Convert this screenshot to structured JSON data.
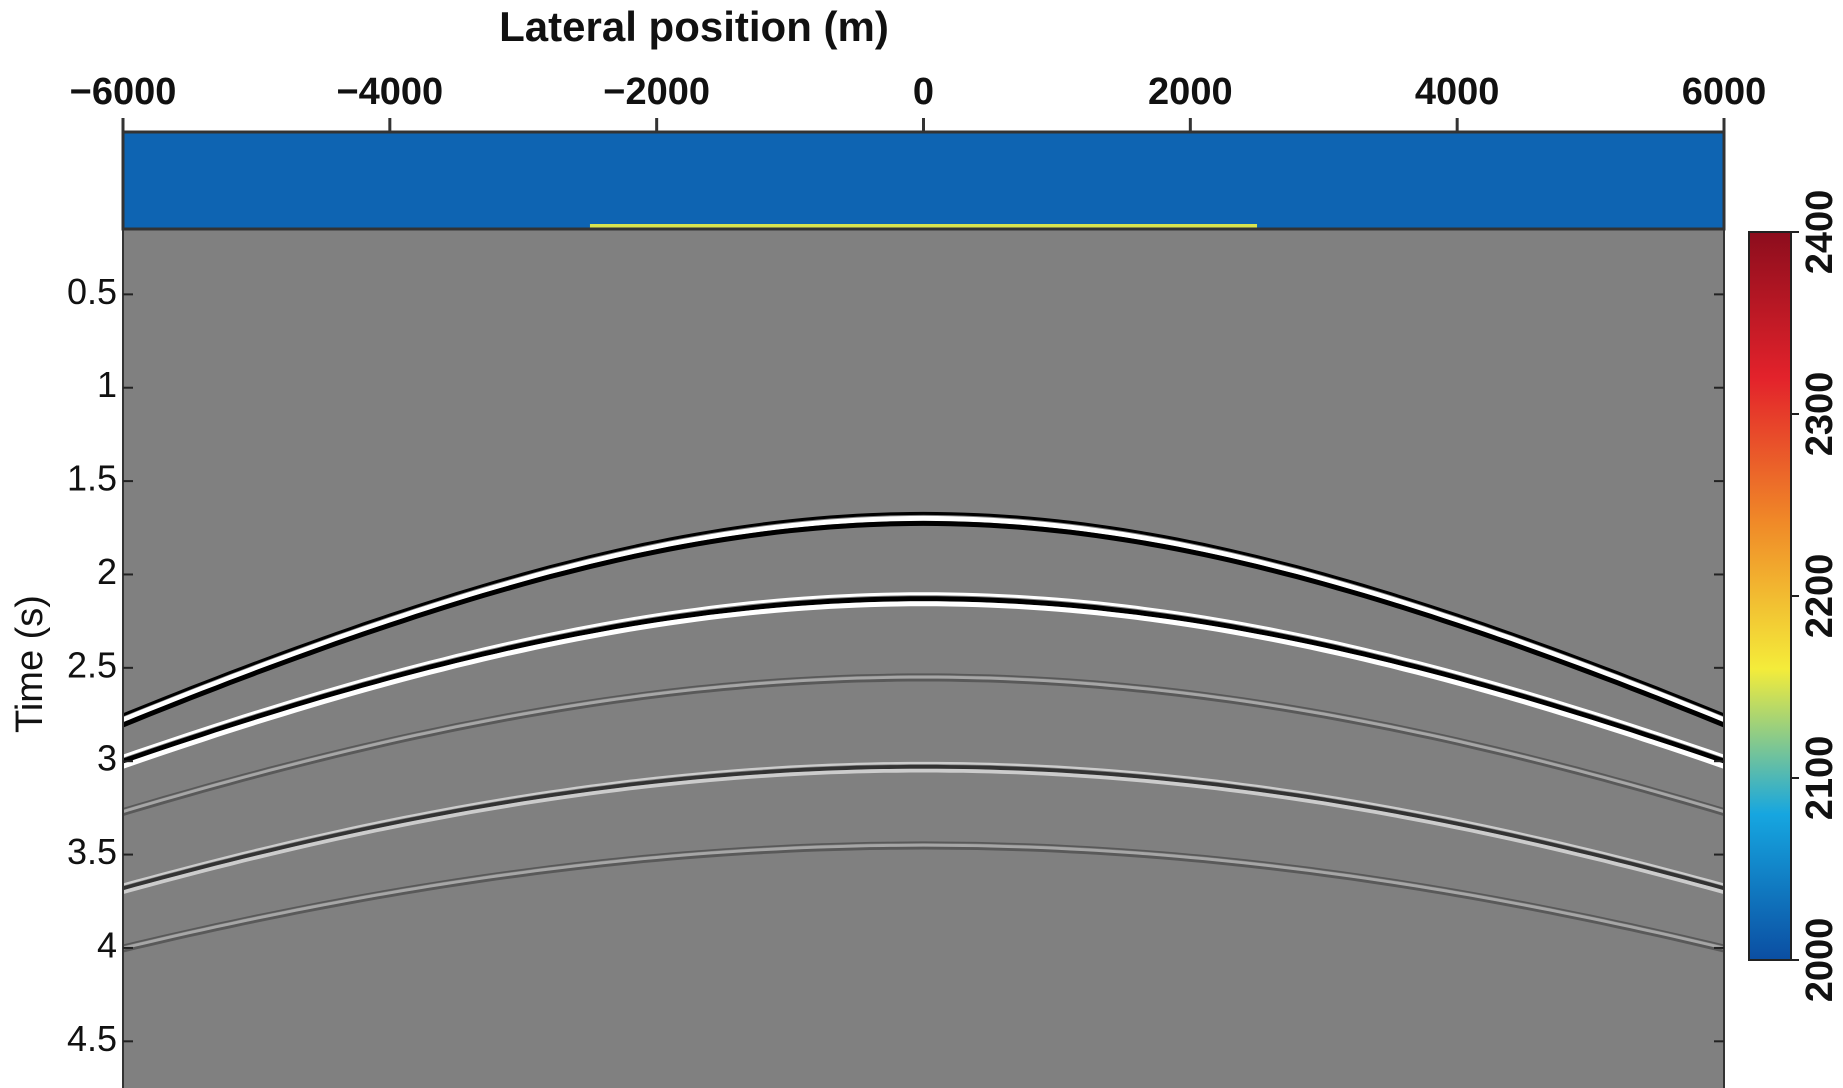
{
  "chart_data": {
    "type": "seismic",
    "title": "Lateral position (m)",
    "y_label": "Time (s)",
    "xlim": [
      -6000,
      6000
    ],
    "xticks": [
      {
        "value": -6000,
        "label": "−6000"
      },
      {
        "value": -4000,
        "label": "−4000"
      },
      {
        "value": -2000,
        "label": "−2000"
      },
      0,
      2000,
      4000,
      6000
    ],
    "ylim": [
      0.15,
      4.75
    ],
    "y_inverted": true,
    "yticks": [
      0.5,
      1,
      1.5,
      2,
      2.5,
      3,
      3.5,
      4,
      4.5
    ],
    "background": "#808080",
    "events": [
      {
        "t0": 1.7,
        "velocity": 2730,
        "amplitude": 1,
        "polarity": 1
      },
      {
        "t0": 2.13,
        "velocity": 2840,
        "amplitude": 1,
        "polarity": -1
      },
      {
        "t0": 2.55,
        "velocity": 2930,
        "amplitude": 0.3,
        "polarity": 1
      },
      {
        "t0": 3.03,
        "velocity": 2870,
        "amplitude": 0.6,
        "polarity": -1
      },
      {
        "t0": 3.45,
        "velocity": 2960,
        "amplitude": 0.3,
        "polarity": 1
      }
    ],
    "velocity_layer": 2020,
    "anomaly": {
      "x": [
        -2500,
        2500
      ],
      "value": 2150
    },
    "colorbar": {
      "lim": [
        2000,
        2400
      ],
      "ticks": [
        2000,
        2100,
        2200,
        2300,
        2400
      ],
      "colormap": [
        "#0b4ea2",
        "#16a6e0",
        "#f4ec3a",
        "#f08a28",
        "#e3222b",
        "#8c0d1d"
      ]
    }
  }
}
